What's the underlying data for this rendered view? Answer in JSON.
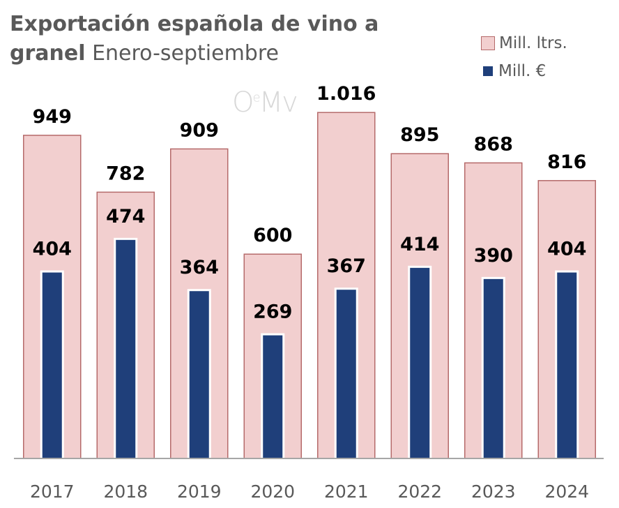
{
  "chart_data": {
    "type": "bar",
    "title": "Exportación española de vino a granel",
    "subtitle": "Enero-septiembre",
    "categories": [
      "2017",
      "2018",
      "2019",
      "2020",
      "2021",
      "2022",
      "2023",
      "2024"
    ],
    "series": [
      {
        "name": "Mill. ltrs.",
        "values": [
          949,
          782,
          909,
          600,
          1016,
          895,
          868,
          816
        ],
        "labels": [
          "949",
          "782",
          "909",
          "600",
          "1.016",
          "895",
          "868",
          "816"
        ],
        "color": "#f2cfcf",
        "border": "#b56a6a",
        "axis": "primary"
      },
      {
        "name": "Mill. €",
        "values": [
          404,
          474,
          364,
          269,
          367,
          414,
          390,
          404
        ],
        "labels": [
          "404",
          "474",
          "364",
          "269",
          "367",
          "414",
          "390",
          "404"
        ],
        "color": "#1f3f7a",
        "axis": "secondary"
      }
    ],
    "legend": "top-right",
    "grid": false,
    "watermark": "OeMv"
  }
}
